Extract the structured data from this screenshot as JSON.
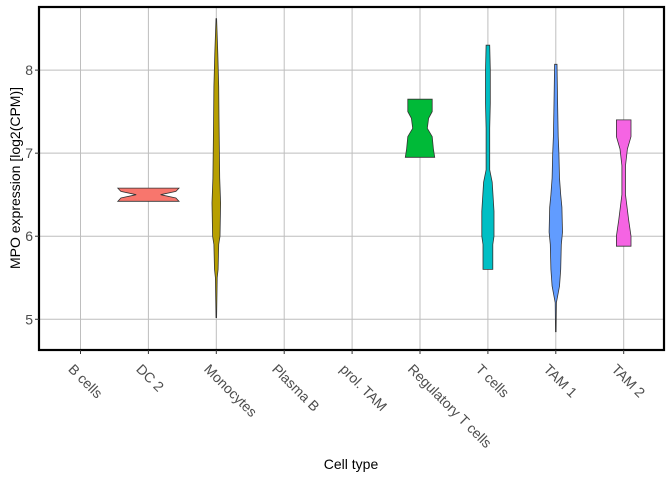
{
  "chart_data": {
    "type": "violin",
    "xlabel": "Cell type",
    "ylabel": "MPO expression [log2(CPM)]",
    "categories": [
      "B cells",
      "DC 2",
      "Monocytes",
      "Plasma B",
      "prol. TAM",
      "Regulatory T cells",
      "T cells",
      "TAM 1",
      "TAM 2"
    ],
    "y_ticks": [
      5,
      6,
      7,
      8
    ],
    "ylim": [
      4.63,
      8.76
    ],
    "grid": true,
    "series": [
      {
        "category": "DC 2",
        "color": "#F8766D",
        "min": 6.42,
        "max": 6.58,
        "profile": [
          [
            6.42,
            0.5
          ],
          [
            6.46,
            0.45
          ],
          [
            6.5,
            0.2
          ],
          [
            6.54,
            0.45
          ],
          [
            6.58,
            0.5
          ]
        ]
      },
      {
        "category": "Monocytes",
        "color": "#B79F00",
        "min": 5.02,
        "max": 8.62,
        "profile": [
          [
            5.02,
            0.005
          ],
          [
            5.5,
            0.015
          ],
          [
            5.6,
            0.03
          ],
          [
            5.9,
            0.04
          ],
          [
            6.0,
            0.06
          ],
          [
            6.4,
            0.07
          ],
          [
            6.7,
            0.055
          ],
          [
            7.0,
            0.05
          ],
          [
            7.4,
            0.045
          ],
          [
            7.8,
            0.04
          ],
          [
            8.2,
            0.025
          ],
          [
            8.62,
            0.005
          ]
        ]
      },
      {
        "category": "Regulatory T cells",
        "color": "#00BA38",
        "min": 6.95,
        "max": 7.65,
        "profile": [
          [
            6.95,
            0.24
          ],
          [
            7.05,
            0.22
          ],
          [
            7.2,
            0.2
          ],
          [
            7.3,
            0.12
          ],
          [
            7.42,
            0.14
          ],
          [
            7.5,
            0.2
          ],
          [
            7.65,
            0.2
          ]
        ]
      },
      {
        "category": "T cells",
        "color": "#00BFC4",
        "min": 5.6,
        "max": 8.3,
        "profile": [
          [
            5.6,
            0.08
          ],
          [
            5.9,
            0.08
          ],
          [
            6.0,
            0.1
          ],
          [
            6.3,
            0.1
          ],
          [
            6.65,
            0.07
          ],
          [
            6.8,
            0.03
          ],
          [
            7.3,
            0.03
          ],
          [
            7.6,
            0.04
          ],
          [
            8.0,
            0.04
          ],
          [
            8.3,
            0.03
          ]
        ]
      },
      {
        "category": "TAM 1",
        "color": "#619CFF",
        "min": 4.85,
        "max": 8.07,
        "profile": [
          [
            4.85,
            0.005
          ],
          [
            5.2,
            0.01
          ],
          [
            5.4,
            0.06
          ],
          [
            5.6,
            0.08
          ],
          [
            5.9,
            0.09
          ],
          [
            6.05,
            0.11
          ],
          [
            6.35,
            0.1
          ],
          [
            6.5,
            0.08
          ],
          [
            6.7,
            0.06
          ],
          [
            7.0,
            0.05
          ],
          [
            7.2,
            0.04
          ],
          [
            7.6,
            0.03
          ],
          [
            8.07,
            0.02
          ]
        ]
      },
      {
        "category": "TAM 2",
        "color": "#F564E3",
        "min": 5.88,
        "max": 7.4,
        "profile": [
          [
            5.88,
            0.12
          ],
          [
            6.0,
            0.12
          ],
          [
            6.2,
            0.08
          ],
          [
            6.5,
            0.03
          ],
          [
            6.85,
            0.03
          ],
          [
            7.05,
            0.06
          ],
          [
            7.2,
            0.12
          ],
          [
            7.4,
            0.12
          ]
        ]
      }
    ]
  }
}
